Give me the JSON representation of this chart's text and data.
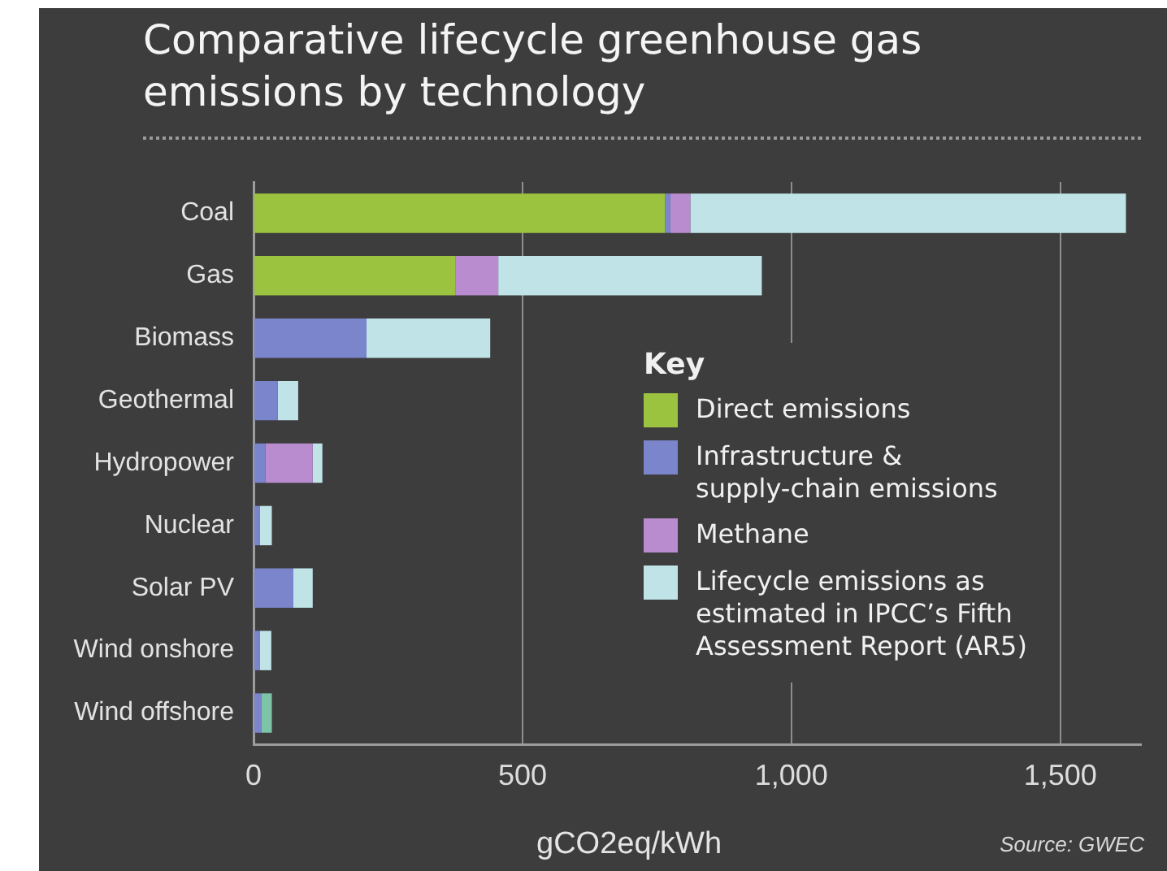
{
  "chart_data": {
    "type": "bar",
    "orientation": "horizontal",
    "stacked": true,
    "title": "Comparative lifecycle greenhouse gas emissions by technology",
    "xlabel": "gCO2eq/kWh",
    "legend_title": "Key",
    "legend": "right",
    "grid": "x",
    "categories": [
      "Coal",
      "Gas",
      "Biomass",
      "Geothermal",
      "Hydropower",
      "Nuclear",
      "Solar PV",
      "Wind onshore",
      "Wind offshore"
    ],
    "series": [
      {
        "name": "Direct emissions",
        "color": "#9cc33f",
        "values": [
          765,
          375,
          null,
          null,
          null,
          null,
          null,
          null,
          null
        ]
      },
      {
        "name": "Infrastructure & supply-chain emissions",
        "color": "#7a85cc",
        "values": [
          10,
          null,
          210,
          45,
          22,
          12,
          74,
          12,
          15
        ]
      },
      {
        "name": "Methane",
        "color": "#b88ccf",
        "values": [
          37,
          80,
          null,
          null,
          88,
          null,
          null,
          null,
          null
        ]
      },
      {
        "name": "Lifecycle emissions as estimated in IPCC’s Fifth Assessment Report (AR5)",
        "color": "#bfe3e6",
        "colors": [
          "#bfe3e6",
          "#bfe3e6",
          "#bfe3e6",
          "#bfe3e6",
          "#bfe3e6",
          "#bfe3e6",
          "#bfe3e6",
          "#bfe3e6",
          "#7cc3a8"
        ],
        "values": [
          810,
          490,
          230,
          38,
          18,
          22,
          36,
          21,
          19
        ]
      }
    ],
    "xlim": [
      0,
      1650
    ],
    "xticks": [
      0,
      500,
      {
        "value": 1000,
        "label": "1,000"
      },
      {
        "value": 1500,
        "label": "1,500"
      }
    ],
    "annotations": [
      "Source: GWEC"
    ]
  }
}
